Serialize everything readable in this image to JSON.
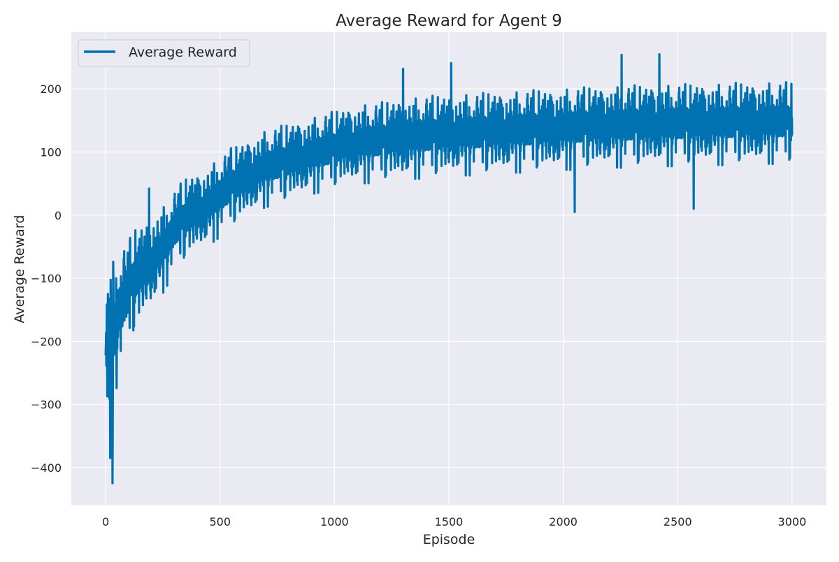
{
  "chart_data": {
    "type": "line",
    "title": "Average Reward for Agent 9",
    "xlabel": "Episode",
    "ylabel": "Average Reward",
    "xlim": [
      -150,
      3150
    ],
    "ylim": [
      -460,
      290
    ],
    "xticks": [
      0,
      500,
      1000,
      1500,
      2000,
      2500,
      3000
    ],
    "yticks": [
      -400,
      -300,
      -200,
      -100,
      0,
      100,
      200
    ],
    "xtick_labels": [
      "0",
      "500",
      "1000",
      "1500",
      "2000",
      "2500",
      "3000"
    ],
    "ytick_labels": [
      "−400",
      "−300",
      "−200",
      "−100",
      "0",
      "100",
      "200"
    ],
    "grid": true,
    "legend": {
      "position": "top-left",
      "entries": [
        "Average Reward"
      ]
    },
    "colors": {
      "background": "#eaeaf2",
      "grid": "#ffffff",
      "series": "#0072b2"
    },
    "series": [
      {
        "name": "Average Reward",
        "x": [
          0,
          25,
          50,
          75,
          100,
          125,
          150,
          175,
          200,
          225,
          250,
          275,
          300,
          350,
          400,
          450,
          500,
          550,
          600,
          650,
          700,
          750,
          800,
          850,
          900,
          950,
          1000,
          1050,
          1100,
          1150,
          1200,
          1250,
          1300,
          1350,
          1400,
          1450,
          1500,
          1550,
          1600,
          1650,
          1700,
          1750,
          1800,
          1850,
          1900,
          1950,
          2000,
          2050,
          2100,
          2150,
          2200,
          2250,
          2300,
          2350,
          2400,
          2450,
          2500,
          2550,
          2600,
          2650,
          2700,
          2750,
          2800,
          2850,
          2900,
          2950,
          3000
        ],
        "values": [
          -190,
          -230,
          -170,
          -150,
          -130,
          -110,
          -100,
          -90,
          -80,
          -70,
          -60,
          -45,
          -30,
          -10,
          0,
          10,
          25,
          40,
          50,
          60,
          70,
          75,
          80,
          85,
          90,
          95,
          100,
          105,
          108,
          110,
          112,
          114,
          116,
          118,
          120,
          121,
          122,
          123,
          124,
          125,
          126,
          127,
          128,
          129,
          130,
          131,
          132,
          133,
          134,
          135,
          136,
          136,
          137,
          137,
          138,
          138,
          139,
          139,
          140,
          140,
          140,
          141,
          141,
          141,
          142,
          142,
          142
        ],
        "spread": [
          60,
          80,
          55,
          50,
          45,
          45,
          42,
          40,
          40,
          38,
          37,
          36,
          35,
          35,
          34,
          34,
          34,
          34,
          33,
          33,
          33,
          33,
          33,
          33,
          33,
          33,
          33,
          33,
          34,
          34,
          34,
          34,
          35,
          35,
          35,
          35,
          35,
          35,
          35,
          35,
          35,
          35,
          35,
          35,
          35,
          35,
          35,
          35,
          35,
          35,
          35,
          35,
          35,
          35,
          35,
          35,
          35,
          35,
          35,
          35,
          35,
          35,
          35,
          35,
          35,
          35,
          35
        ],
        "n_episodes": 3000,
        "notable_points": [
          {
            "x": 30,
            "y": -425
          },
          {
            "x": 20,
            "y": -385
          },
          {
            "x": 10,
            "y": -125
          },
          {
            "x": 190,
            "y": 42
          },
          {
            "x": 1300,
            "y": 232
          },
          {
            "x": 1510,
            "y": 241
          },
          {
            "x": 2255,
            "y": 254
          },
          {
            "x": 2420,
            "y": 255
          },
          {
            "x": 2570,
            "y": 10
          },
          {
            "x": 2050,
            "y": 5
          }
        ]
      }
    ]
  }
}
